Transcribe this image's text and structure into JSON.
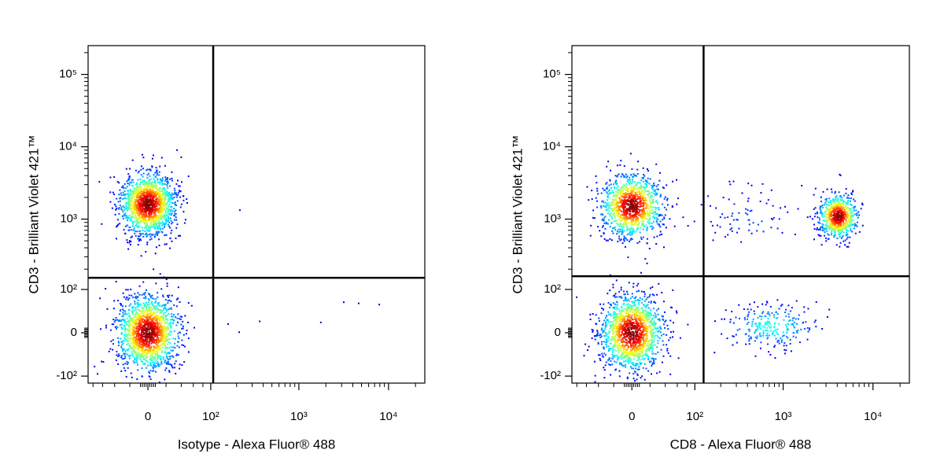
{
  "chart_data": [
    {
      "type": "scatter",
      "scale": "biexponential",
      "x_label": "Isotype - Alexa Fluor® 488",
      "y_label": "CD3 - Brilliant Violet 421™",
      "xlim": [
        -92,
        25400
      ],
      "ylim": [
        -128,
        250000
      ],
      "xticks": [
        0,
        {
          "value": 100,
          "label": "10²"
        },
        {
          "value": 1000,
          "label": "10³"
        },
        {
          "value": 10000,
          "label": "10⁴"
        }
      ],
      "yticks": [
        {
          "value": -100,
          "label": "-10²"
        },
        0,
        {
          "value": 100,
          "label": "10²"
        },
        {
          "value": 1000,
          "label": "10³"
        },
        {
          "value": 10000,
          "label": "10⁴"
        },
        {
          "value": 100000,
          "label": "10⁵"
        }
      ],
      "xminor": [
        -80,
        -60,
        -40,
        -20,
        -8,
        -6,
        -4,
        -2,
        2,
        4,
        6,
        8,
        20,
        40,
        60,
        80,
        200,
        300,
        400,
        500,
        600,
        700,
        800,
        900,
        2000,
        3000,
        4000,
        5000,
        6000,
        7000,
        8000,
        9000,
        20000
      ],
      "yminor": [
        -8,
        -6,
        -4,
        -2,
        2,
        4,
        6,
        8,
        200,
        300,
        400,
        500,
        600,
        700,
        800,
        900,
        2000,
        3000,
        4000,
        5000,
        6000,
        7000,
        8000,
        9000,
        20000,
        30000,
        40000,
        50000,
        60000,
        70000,
        80000,
        90000,
        200000
      ],
      "quadrant": {
        "x": 107,
        "y": 150
      },
      "clusters": [
        {
          "x": 0,
          "y": 1600,
          "spread": [
            0.36,
            0.5
          ],
          "n": 1500
        },
        {
          "x": 0,
          "y": 0,
          "spread": [
            0.4,
            0.6
          ],
          "n": 1500
        }
      ],
      "points": {
        "x": [
          218,
          3170,
          7890,
          4650,
          1760,
          365,
          160,
          214
        ],
        "y": [
          1330,
          61,
          55,
          58,
          18,
          20,
          15,
          1
        ]
      }
    },
    {
      "type": "scatter",
      "scale": "biexponential",
      "x_label": "CD8 - Alexa Fluor® 488",
      "y_label": "CD3 - Brilliant Violet 421™",
      "xlim": [
        -92,
        25400
      ],
      "ylim": [
        -128,
        250000
      ],
      "xticks": [
        0,
        {
          "value": 100,
          "label": "10²"
        },
        {
          "value": 1000,
          "label": "10³"
        },
        {
          "value": 10000,
          "label": "10⁴"
        }
      ],
      "yticks": [
        {
          "value": -100,
          "label": "-10²"
        },
        0,
        {
          "value": 100,
          "label": "10²"
        },
        {
          "value": 1000,
          "label": "10³"
        },
        {
          "value": 10000,
          "label": "10⁴"
        },
        {
          "value": 100000,
          "label": "10⁵"
        }
      ],
      "xminor": [
        -80,
        -60,
        -40,
        -20,
        -8,
        -6,
        -4,
        -2,
        2,
        4,
        6,
        8,
        20,
        40,
        60,
        80,
        200,
        300,
        400,
        500,
        600,
        700,
        800,
        900,
        2000,
        3000,
        4000,
        5000,
        6000,
        7000,
        8000,
        9000,
        20000
      ],
      "yminor": [
        -8,
        -6,
        -4,
        -2,
        2,
        4,
        6,
        8,
        200,
        300,
        400,
        500,
        600,
        700,
        800,
        900,
        2000,
        3000,
        4000,
        5000,
        6000,
        7000,
        8000,
        9000,
        20000,
        30000,
        40000,
        50000,
        60000,
        70000,
        80000,
        90000,
        200000
      ],
      "quadrant": {
        "x": 127,
        "y": 158
      },
      "clusters": [
        {
          "x": 0,
          "y": 1510,
          "spread": [
            0.4,
            0.5
          ],
          "n": 1100
        },
        {
          "x": 4110,
          "y": 1090,
          "spread": [
            0.25,
            0.35
          ],
          "n": 700
        },
        {
          "x": 0,
          "y": 0,
          "spread": [
            0.4,
            0.6
          ],
          "n": 1500
        },
        {
          "x": 400,
          "y": 1000,
          "spread": [
            0.8,
            0.5
          ],
          "n": 80
        },
        {
          "x": 740,
          "y": 11,
          "spread": [
            0.6,
            0.35
          ],
          "n": 250
        }
      ],
      "points": {
        "x": [],
        "y": []
      }
    }
  ]
}
